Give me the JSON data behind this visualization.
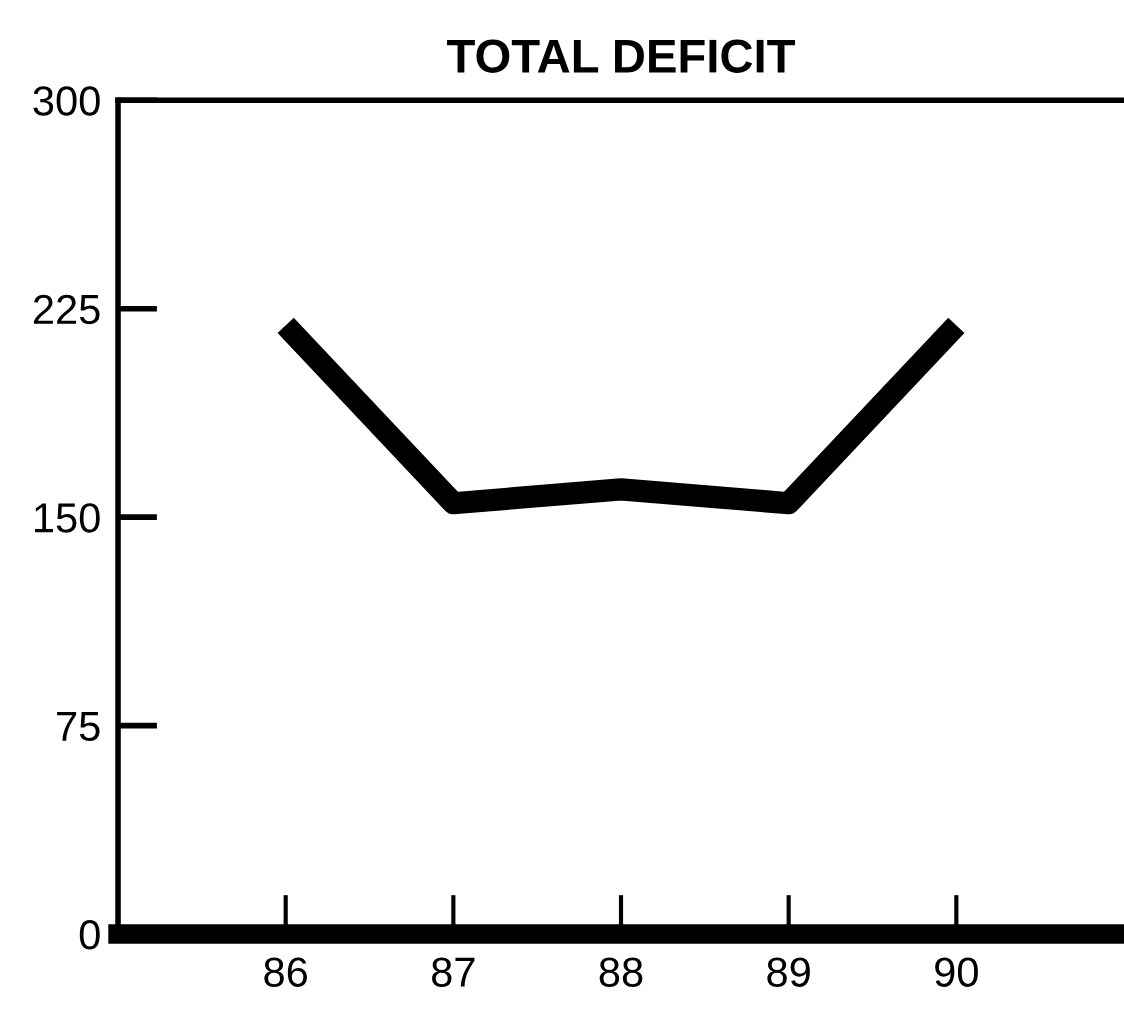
{
  "chart_data": {
    "type": "line",
    "title": "TOTAL DEFICIT",
    "x": [
      86,
      87,
      88,
      89,
      90
    ],
    "series": [
      {
        "color": "#000000",
        "values": [
          219,
          155,
          160,
          155,
          219
        ]
      }
    ],
    "xlim": [
      85,
      91
    ],
    "xticks": [
      86,
      87,
      88,
      89,
      90
    ],
    "ylim": [
      0,
      300
    ],
    "yticks": [
      0,
      75,
      150,
      225,
      300
    ],
    "grid": false,
    "legend": false,
    "marker": "none",
    "line_style": "solid"
  }
}
